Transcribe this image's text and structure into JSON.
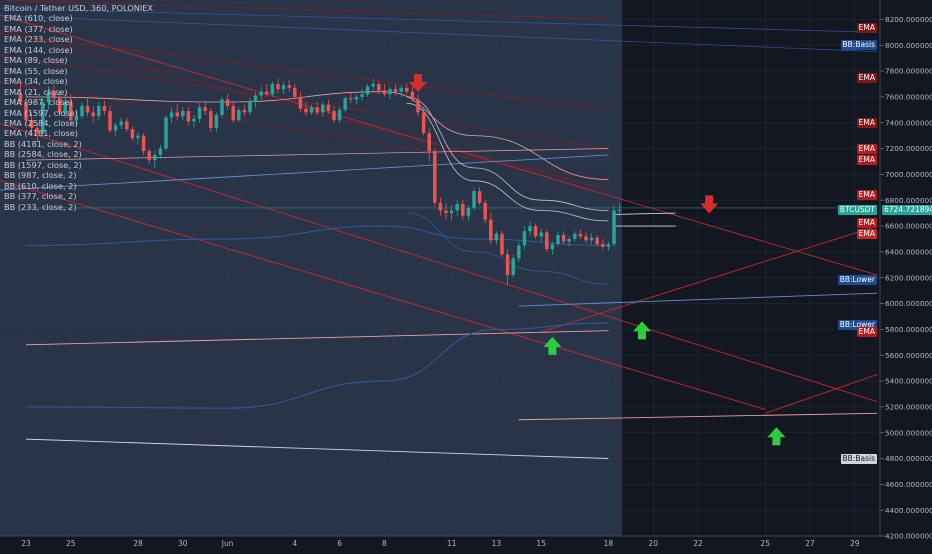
{
  "title": "Bitcoin / Tether USD, 360, POLONIEX",
  "legend": [
    "EMA (610, close)",
    "EMA (377, close)",
    "EMA (233, close)",
    "EMA (144, close)",
    "EMA (89, close)",
    "EMA (55, close)",
    "EMA (34, close)",
    "EMA (21, close)",
    "EMA (987, close)",
    "EMA (1597, close)",
    "EMA (2584, close)",
    "EMA (4181, close)",
    "BB (4181, close, 2)",
    "BB (2584, close, 2)",
    "BB (1597, close, 2)",
    "BB (987, close, 2)",
    "BB (610, close, 2)",
    "BB (377, close, 2)",
    "BB (233, close, 2)"
  ],
  "colors": {
    "background": "#131722",
    "shaded_region": "#2a3449",
    "up": "#26a69a",
    "down": "#ef5350",
    "ema": "#b71c1c",
    "bb": "#1e5ea8",
    "arrow_up": "#2ecc40",
    "arrow_down": "#d32f2f"
  },
  "chart_data": {
    "type": "candlestick",
    "symbol": "Bitcoin / Tether USD",
    "interval": "360",
    "exchange": "POLONIEX",
    "y_axis": {
      "range": [
        4200,
        8350
      ],
      "ticks": [
        "4200.00000000",
        "4400.00000000",
        "4600.00000000",
        "4800.00000000",
        "5000.00000000",
        "5200.00000000",
        "5400.00000000",
        "5600.00000000",
        "5800.00000000",
        "6000.00000000",
        "6200.00000000",
        "6400.00000000",
        "6600.00000000",
        "6800.00000000",
        "7000.00000000",
        "7200.00000000",
        "7400.00000000",
        "7600.00000000",
        "7800.00000000",
        "8000.00000000",
        "8200.00000000"
      ]
    },
    "x_axis": {
      "labels": [
        "23",
        "25",
        "28",
        "30",
        "Jun",
        "4",
        "6",
        "8",
        "11",
        "13",
        "15",
        "18",
        "20",
        "22",
        "25",
        "27",
        "29"
      ],
      "label_dates": [
        "2018-05-23",
        "2018-05-25",
        "2018-05-28",
        "2018-05-30",
        "2018-06-01",
        "2018-06-04",
        "2018-06-06",
        "2018-06-08",
        "2018-06-11",
        "2018-06-13",
        "2018-06-15",
        "2018-06-18",
        "2018-06-20",
        "2018-06-22",
        "2018-06-25",
        "2018-06-27",
        "2018-06-29"
      ]
    },
    "last_price": "6724.72189461",
    "candles": [
      {
        "t": "2018-05-22 18:00",
        "o": 7620,
        "h": 7700,
        "l": 7530,
        "c": 7560
      },
      {
        "t": "2018-05-23 00:00",
        "o": 7560,
        "h": 7590,
        "l": 7380,
        "c": 7420
      },
      {
        "t": "2018-05-23 06:00",
        "o": 7420,
        "h": 7480,
        "l": 7300,
        "c": 7360
      },
      {
        "t": "2018-05-23 12:00",
        "o": 7360,
        "h": 7400,
        "l": 7250,
        "c": 7320
      },
      {
        "t": "2018-05-23 18:00",
        "o": 7320,
        "h": 7590,
        "l": 7290,
        "c": 7560
      },
      {
        "t": "2018-05-24 00:00",
        "o": 7560,
        "h": 7680,
        "l": 7500,
        "c": 7640
      },
      {
        "t": "2018-05-24 06:00",
        "o": 7640,
        "h": 7690,
        "l": 7560,
        "c": 7590
      },
      {
        "t": "2018-05-24 12:00",
        "o": 7590,
        "h": 7650,
        "l": 7460,
        "c": 7480
      },
      {
        "t": "2018-05-24 18:00",
        "o": 7480,
        "h": 7620,
        "l": 7440,
        "c": 7560
      },
      {
        "t": "2018-05-25 00:00",
        "o": 7560,
        "h": 7620,
        "l": 7380,
        "c": 7420
      },
      {
        "t": "2018-05-25 06:00",
        "o": 7420,
        "h": 7500,
        "l": 7370,
        "c": 7450
      },
      {
        "t": "2018-05-25 12:00",
        "o": 7450,
        "h": 7560,
        "l": 7430,
        "c": 7530
      },
      {
        "t": "2018-05-25 18:00",
        "o": 7530,
        "h": 7600,
        "l": 7450,
        "c": 7480
      },
      {
        "t": "2018-05-26 00:00",
        "o": 7480,
        "h": 7530,
        "l": 7400,
        "c": 7450
      },
      {
        "t": "2018-05-26 06:00",
        "o": 7450,
        "h": 7560,
        "l": 7420,
        "c": 7530
      },
      {
        "t": "2018-05-26 12:00",
        "o": 7530,
        "h": 7570,
        "l": 7460,
        "c": 7490
      },
      {
        "t": "2018-05-26 18:00",
        "o": 7490,
        "h": 7530,
        "l": 7320,
        "c": 7340
      },
      {
        "t": "2018-05-27 00:00",
        "o": 7340,
        "h": 7400,
        "l": 7300,
        "c": 7380
      },
      {
        "t": "2018-05-27 06:00",
        "o": 7380,
        "h": 7440,
        "l": 7350,
        "c": 7410
      },
      {
        "t": "2018-05-27 12:00",
        "o": 7410,
        "h": 7440,
        "l": 7330,
        "c": 7350
      },
      {
        "t": "2018-05-27 18:00",
        "o": 7350,
        "h": 7370,
        "l": 7260,
        "c": 7280
      },
      {
        "t": "2018-05-28 00:00",
        "o": 7280,
        "h": 7330,
        "l": 7230,
        "c": 7300
      },
      {
        "t": "2018-05-28 06:00",
        "o": 7300,
        "h": 7320,
        "l": 7150,
        "c": 7180
      },
      {
        "t": "2018-05-28 12:00",
        "o": 7180,
        "h": 7200,
        "l": 7080,
        "c": 7110
      },
      {
        "t": "2018-05-28 18:00",
        "o": 7110,
        "h": 7180,
        "l": 7050,
        "c": 7150
      },
      {
        "t": "2018-05-29 00:00",
        "o": 7150,
        "h": 7230,
        "l": 7120,
        "c": 7200
      },
      {
        "t": "2018-05-29 06:00",
        "o": 7200,
        "h": 7460,
        "l": 7180,
        "c": 7440
      },
      {
        "t": "2018-05-29 12:00",
        "o": 7440,
        "h": 7520,
        "l": 7400,
        "c": 7480
      },
      {
        "t": "2018-05-29 18:00",
        "o": 7480,
        "h": 7550,
        "l": 7420,
        "c": 7450
      },
      {
        "t": "2018-05-30 00:00",
        "o": 7450,
        "h": 7520,
        "l": 7420,
        "c": 7490
      },
      {
        "t": "2018-05-30 06:00",
        "o": 7490,
        "h": 7520,
        "l": 7380,
        "c": 7410
      },
      {
        "t": "2018-05-30 12:00",
        "o": 7410,
        "h": 7460,
        "l": 7360,
        "c": 7430
      },
      {
        "t": "2018-05-30 18:00",
        "o": 7430,
        "h": 7550,
        "l": 7400,
        "c": 7520
      },
      {
        "t": "2018-05-31 00:00",
        "o": 7520,
        "h": 7560,
        "l": 7460,
        "c": 7490
      },
      {
        "t": "2018-05-31 06:00",
        "o": 7490,
        "h": 7510,
        "l": 7330,
        "c": 7360
      },
      {
        "t": "2018-05-31 12:00",
        "o": 7360,
        "h": 7480,
        "l": 7330,
        "c": 7460
      },
      {
        "t": "2018-05-31 18:00",
        "o": 7460,
        "h": 7600,
        "l": 7440,
        "c": 7580
      },
      {
        "t": "2018-06-01 00:00",
        "o": 7580,
        "h": 7620,
        "l": 7500,
        "c": 7530
      },
      {
        "t": "2018-06-01 06:00",
        "o": 7530,
        "h": 7570,
        "l": 7400,
        "c": 7420
      },
      {
        "t": "2018-06-01 12:00",
        "o": 7420,
        "h": 7520,
        "l": 7410,
        "c": 7500
      },
      {
        "t": "2018-06-01 18:00",
        "o": 7500,
        "h": 7540,
        "l": 7450,
        "c": 7480
      },
      {
        "t": "2018-06-02 00:00",
        "o": 7480,
        "h": 7590,
        "l": 7460,
        "c": 7560
      },
      {
        "t": "2018-06-02 06:00",
        "o": 7560,
        "h": 7640,
        "l": 7520,
        "c": 7610
      },
      {
        "t": "2018-06-02 12:00",
        "o": 7610,
        "h": 7680,
        "l": 7580,
        "c": 7640
      },
      {
        "t": "2018-06-02 18:00",
        "o": 7640,
        "h": 7700,
        "l": 7600,
        "c": 7620
      },
      {
        "t": "2018-06-03 00:00",
        "o": 7620,
        "h": 7720,
        "l": 7600,
        "c": 7700
      },
      {
        "t": "2018-06-03 06:00",
        "o": 7700,
        "h": 7740,
        "l": 7630,
        "c": 7660
      },
      {
        "t": "2018-06-03 12:00",
        "o": 7660,
        "h": 7720,
        "l": 7620,
        "c": 7690
      },
      {
        "t": "2018-06-03 18:00",
        "o": 7690,
        "h": 7730,
        "l": 7640,
        "c": 7670
      },
      {
        "t": "2018-06-04 00:00",
        "o": 7670,
        "h": 7700,
        "l": 7580,
        "c": 7600
      },
      {
        "t": "2018-06-04 06:00",
        "o": 7600,
        "h": 7640,
        "l": 7480,
        "c": 7510
      },
      {
        "t": "2018-06-04 12:00",
        "o": 7510,
        "h": 7560,
        "l": 7450,
        "c": 7480
      },
      {
        "t": "2018-06-04 18:00",
        "o": 7480,
        "h": 7540,
        "l": 7460,
        "c": 7520
      },
      {
        "t": "2018-06-05 00:00",
        "o": 7520,
        "h": 7560,
        "l": 7460,
        "c": 7480
      },
      {
        "t": "2018-06-05 06:00",
        "o": 7480,
        "h": 7560,
        "l": 7450,
        "c": 7540
      },
      {
        "t": "2018-06-05 12:00",
        "o": 7540,
        "h": 7580,
        "l": 7470,
        "c": 7490
      },
      {
        "t": "2018-06-05 18:00",
        "o": 7490,
        "h": 7530,
        "l": 7400,
        "c": 7420
      },
      {
        "t": "2018-06-06 00:00",
        "o": 7420,
        "h": 7520,
        "l": 7400,
        "c": 7500
      },
      {
        "t": "2018-06-06 06:00",
        "o": 7500,
        "h": 7600,
        "l": 7480,
        "c": 7590
      },
      {
        "t": "2018-06-06 12:00",
        "o": 7590,
        "h": 7640,
        "l": 7550,
        "c": 7580
      },
      {
        "t": "2018-06-06 18:00",
        "o": 7580,
        "h": 7620,
        "l": 7540,
        "c": 7600
      },
      {
        "t": "2018-06-07 00:00",
        "o": 7600,
        "h": 7660,
        "l": 7570,
        "c": 7620
      },
      {
        "t": "2018-06-07 06:00",
        "o": 7620,
        "h": 7700,
        "l": 7600,
        "c": 7680
      },
      {
        "t": "2018-06-07 12:00",
        "o": 7680,
        "h": 7740,
        "l": 7650,
        "c": 7700
      },
      {
        "t": "2018-06-07 18:00",
        "o": 7700,
        "h": 7720,
        "l": 7620,
        "c": 7650
      },
      {
        "t": "2018-06-08 00:00",
        "o": 7650,
        "h": 7700,
        "l": 7600,
        "c": 7620
      },
      {
        "t": "2018-06-08 06:00",
        "o": 7620,
        "h": 7680,
        "l": 7580,
        "c": 7660
      },
      {
        "t": "2018-06-08 12:00",
        "o": 7660,
        "h": 7700,
        "l": 7610,
        "c": 7640
      },
      {
        "t": "2018-06-08 18:00",
        "o": 7640,
        "h": 7690,
        "l": 7600,
        "c": 7670
      },
      {
        "t": "2018-06-09 00:00",
        "o": 7670,
        "h": 7700,
        "l": 7620,
        "c": 7640
      },
      {
        "t": "2018-06-09 06:00",
        "o": 7640,
        "h": 7680,
        "l": 7560,
        "c": 7580
      },
      {
        "t": "2018-06-09 12:00",
        "o": 7580,
        "h": 7620,
        "l": 7450,
        "c": 7480
      },
      {
        "t": "2018-06-09 18:00",
        "o": 7480,
        "h": 7520,
        "l": 7300,
        "c": 7320
      },
      {
        "t": "2018-06-10 00:00",
        "o": 7320,
        "h": 7360,
        "l": 7100,
        "c": 7180
      },
      {
        "t": "2018-06-10 06:00",
        "o": 7180,
        "h": 7200,
        "l": 6750,
        "c": 6780
      },
      {
        "t": "2018-06-10 12:00",
        "o": 6780,
        "h": 6820,
        "l": 6680,
        "c": 6720
      },
      {
        "t": "2018-06-10 18:00",
        "o": 6720,
        "h": 6780,
        "l": 6650,
        "c": 6700
      },
      {
        "t": "2018-06-11 00:00",
        "o": 6700,
        "h": 6760,
        "l": 6640,
        "c": 6720
      },
      {
        "t": "2018-06-11 06:00",
        "o": 6720,
        "h": 6800,
        "l": 6680,
        "c": 6770
      },
      {
        "t": "2018-06-11 12:00",
        "o": 6770,
        "h": 6800,
        "l": 6650,
        "c": 6680
      },
      {
        "t": "2018-06-11 18:00",
        "o": 6680,
        "h": 6760,
        "l": 6640,
        "c": 6740
      },
      {
        "t": "2018-06-12 00:00",
        "o": 6740,
        "h": 6900,
        "l": 6720,
        "c": 6870
      },
      {
        "t": "2018-06-12 06:00",
        "o": 6870,
        "h": 6900,
        "l": 6760,
        "c": 6780
      },
      {
        "t": "2018-06-12 12:00",
        "o": 6780,
        "h": 6800,
        "l": 6620,
        "c": 6650
      },
      {
        "t": "2018-06-12 18:00",
        "o": 6650,
        "h": 6700,
        "l": 6460,
        "c": 6490
      },
      {
        "t": "2018-06-13 00:00",
        "o": 6490,
        "h": 6560,
        "l": 6460,
        "c": 6540
      },
      {
        "t": "2018-06-13 06:00",
        "o": 6540,
        "h": 6560,
        "l": 6360,
        "c": 6380
      },
      {
        "t": "2018-06-13 12:00",
        "o": 6380,
        "h": 6420,
        "l": 6140,
        "c": 6220
      },
      {
        "t": "2018-06-13 18:00",
        "o": 6220,
        "h": 6380,
        "l": 6200,
        "c": 6350
      },
      {
        "t": "2018-06-14 00:00",
        "o": 6350,
        "h": 6480,
        "l": 6320,
        "c": 6450
      },
      {
        "t": "2018-06-14 06:00",
        "o": 6450,
        "h": 6600,
        "l": 6420,
        "c": 6560
      },
      {
        "t": "2018-06-14 12:00",
        "o": 6560,
        "h": 6640,
        "l": 6520,
        "c": 6600
      },
      {
        "t": "2018-06-14 18:00",
        "o": 6600,
        "h": 6620,
        "l": 6500,
        "c": 6520
      },
      {
        "t": "2018-06-15 00:00",
        "o": 6520,
        "h": 6580,
        "l": 6480,
        "c": 6550
      },
      {
        "t": "2018-06-15 06:00",
        "o": 6550,
        "h": 6570,
        "l": 6400,
        "c": 6420
      },
      {
        "t": "2018-06-15 12:00",
        "o": 6420,
        "h": 6480,
        "l": 6380,
        "c": 6460
      },
      {
        "t": "2018-06-15 18:00",
        "o": 6460,
        "h": 6560,
        "l": 6440,
        "c": 6530
      },
      {
        "t": "2018-06-16 00:00",
        "o": 6530,
        "h": 6560,
        "l": 6460,
        "c": 6480
      },
      {
        "t": "2018-06-16 06:00",
        "o": 6480,
        "h": 6520,
        "l": 6440,
        "c": 6500
      },
      {
        "t": "2018-06-16 12:00",
        "o": 6500,
        "h": 6560,
        "l": 6480,
        "c": 6540
      },
      {
        "t": "2018-06-16 18:00",
        "o": 6540,
        "h": 6570,
        "l": 6500,
        "c": 6520
      },
      {
        "t": "2018-06-17 00:00",
        "o": 6520,
        "h": 6550,
        "l": 6470,
        "c": 6490
      },
      {
        "t": "2018-06-17 06:00",
        "o": 6490,
        "h": 6540,
        "l": 6460,
        "c": 6510
      },
      {
        "t": "2018-06-17 12:00",
        "o": 6510,
        "h": 6530,
        "l": 6440,
        "c": 6460
      },
      {
        "t": "2018-06-17 18:00",
        "o": 6460,
        "h": 6500,
        "l": 6420,
        "c": 6440
      },
      {
        "t": "2018-06-18 00:00",
        "o": 6440,
        "h": 6480,
        "l": 6410,
        "c": 6460
      },
      {
        "t": "2018-06-18 06:00",
        "o": 6460,
        "h": 6760,
        "l": 6440,
        "c": 6720
      },
      {
        "t": "2018-06-18 12:00",
        "o": 6720,
        "h": 6780,
        "l": 6680,
        "c": 6725
      }
    ],
    "drawn_lines": "descending red channel lines, ascending red support line, pink/white horizontal lines, EMA (dark red) and Bollinger Band (blue/white) curves extended into the future region",
    "annotations": [
      {
        "type": "arrow_down",
        "color": "red",
        "at": "2018-06-09",
        "price": 7700
      },
      {
        "type": "arrow_down",
        "color": "red",
        "at": "2018-06-22",
        "price": 6760
      },
      {
        "type": "arrow_up",
        "color": "green",
        "at": "2018-06-15",
        "price": 5680
      },
      {
        "type": "arrow_up",
        "color": "green",
        "at": "2018-06-19",
        "price": 5800
      },
      {
        "type": "arrow_up",
        "color": "green",
        "at": "2018-06-25",
        "price": 4980
      }
    ]
  },
  "price_badges": [
    {
      "text": "EMA",
      "price": 8130,
      "bg": "#801818"
    },
    {
      "text": "BB:Basis",
      "price": 8000,
      "bg": "#1e4b8f"
    },
    {
      "text": "EMA",
      "price": 7745,
      "bg": "#801818"
    },
    {
      "text": "EMA",
      "price": 7400,
      "bg": "#801818"
    },
    {
      "text": "EMA",
      "price": 7200,
      "bg": "#b71c1c"
    },
    {
      "text": "EMA",
      "price": 7110,
      "bg": "#b71c1c"
    },
    {
      "text": "EMA",
      "price": 6840,
      "bg": "#b71c1c"
    },
    {
      "text": "BTCUSDT",
      "price": 6724.72,
      "bg": "#26a69a"
    },
    {
      "text": "EMA",
      "price": 6620,
      "bg": "#b71c1c"
    },
    {
      "text": "EMA",
      "price": 6540,
      "bg": "#c62828"
    },
    {
      "text": "BB:Lower",
      "price": 6180,
      "bg": "#1e4b8f"
    },
    {
      "text": "BB:Lower",
      "price": 5835,
      "bg": "#1e4b8f"
    },
    {
      "text": "EMA",
      "price": 5780,
      "bg": "#b71c1c"
    },
    {
      "text": "BB:Basis",
      "price": 4800,
      "bg": "#d1d4dc"
    }
  ]
}
